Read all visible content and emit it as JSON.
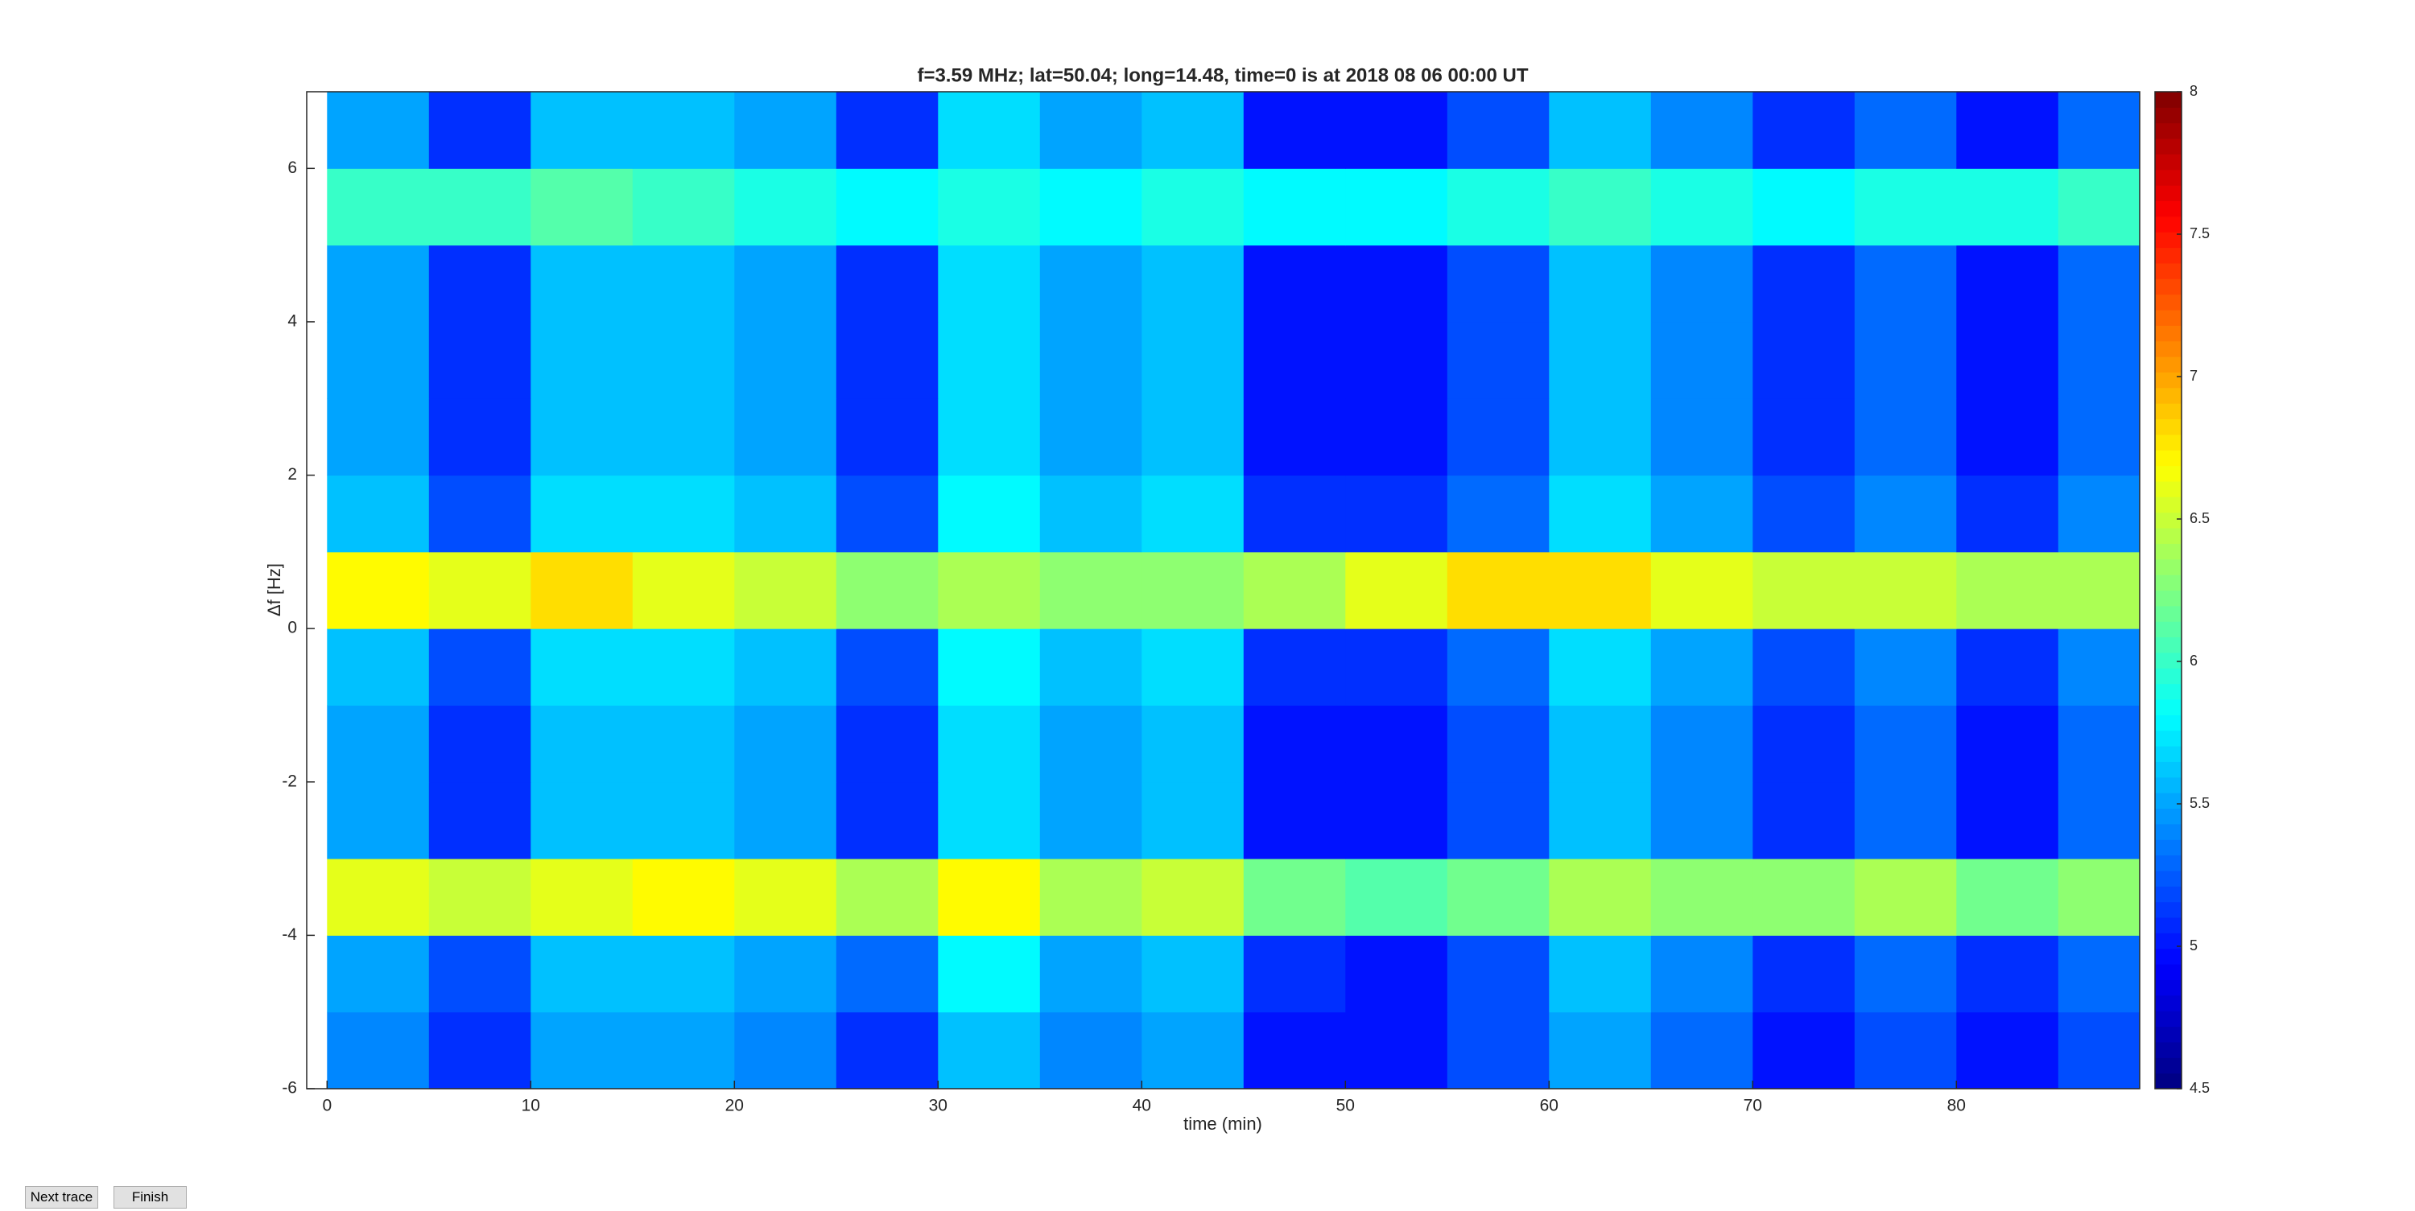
{
  "chart_data": {
    "type": "heatmap",
    "title": "f=3.59 MHz;  lat=50.04; long=14.48, time=0 is at 2018 08 06 00:00 UT",
    "xlabel": "time (min)",
    "ylabel": "Δf [Hz]",
    "x": [
      2.5,
      7.5,
      12.5,
      17.5,
      22.5,
      27.5,
      32.5,
      37.5,
      42.5,
      47.5,
      52.5,
      57.5,
      62.5,
      67.5,
      72.5,
      77.5,
      82.5,
      87.5
    ],
    "y": [
      -5.5,
      -4.5,
      -3.5,
      -2.5,
      -1.5,
      -0.5,
      0.5,
      1.5,
      2.5,
      3.5,
      4.5,
      5.5,
      6.5
    ],
    "values": [
      [
        5.4,
        5.1,
        5.5,
        5.5,
        5.4,
        5.1,
        5.6,
        5.4,
        5.5,
        5.0,
        5.0,
        5.2,
        5.5,
        5.3,
        5.0,
        5.2,
        5.0,
        5.2
      ],
      [
        5.5,
        5.2,
        5.6,
        5.6,
        5.5,
        5.3,
        5.8,
        5.5,
        5.6,
        5.1,
        5.0,
        5.2,
        5.6,
        5.4,
        5.1,
        5.3,
        5.1,
        5.3
      ],
      [
        6.6,
        6.5,
        6.6,
        6.7,
        6.6,
        6.4,
        6.7,
        6.4,
        6.5,
        6.2,
        6.1,
        6.2,
        6.4,
        6.3,
        6.3,
        6.4,
        6.2,
        6.3
      ],
      [
        5.5,
        5.1,
        5.6,
        5.6,
        5.5,
        5.1,
        5.7,
        5.5,
        5.6,
        5.0,
        5.0,
        5.2,
        5.6,
        5.4,
        5.1,
        5.3,
        5.0,
        5.3
      ],
      [
        5.5,
        5.1,
        5.6,
        5.6,
        5.5,
        5.1,
        5.7,
        5.5,
        5.6,
        5.0,
        5.0,
        5.2,
        5.6,
        5.4,
        5.1,
        5.3,
        5.0,
        5.3
      ],
      [
        5.6,
        5.2,
        5.7,
        5.7,
        5.6,
        5.2,
        5.8,
        5.6,
        5.7,
        5.1,
        5.1,
        5.3,
        5.7,
        5.5,
        5.2,
        5.4,
        5.1,
        5.4
      ],
      [
        6.7,
        6.6,
        6.8,
        6.6,
        6.5,
        6.3,
        6.4,
        6.3,
        6.3,
        6.4,
        6.6,
        6.8,
        6.8,
        6.6,
        6.5,
        6.5,
        6.4,
        6.4
      ],
      [
        5.6,
        5.2,
        5.7,
        5.7,
        5.6,
        5.2,
        5.8,
        5.6,
        5.7,
        5.1,
        5.1,
        5.3,
        5.7,
        5.5,
        5.2,
        5.4,
        5.1,
        5.4
      ],
      [
        5.5,
        5.1,
        5.6,
        5.6,
        5.5,
        5.1,
        5.7,
        5.5,
        5.6,
        5.0,
        5.0,
        5.2,
        5.6,
        5.4,
        5.1,
        5.3,
        5.0,
        5.3
      ],
      [
        5.5,
        5.1,
        5.6,
        5.6,
        5.5,
        5.1,
        5.7,
        5.5,
        5.6,
        5.0,
        5.0,
        5.2,
        5.6,
        5.4,
        5.1,
        5.3,
        5.0,
        5.3
      ],
      [
        5.5,
        5.1,
        5.6,
        5.6,
        5.5,
        5.1,
        5.7,
        5.5,
        5.6,
        5.0,
        5.0,
        5.2,
        5.6,
        5.4,
        5.1,
        5.3,
        5.0,
        5.3
      ],
      [
        6.0,
        6.0,
        6.1,
        6.0,
        5.9,
        5.8,
        5.9,
        5.8,
        5.9,
        5.8,
        5.8,
        5.9,
        6.0,
        5.9,
        5.8,
        5.9,
        5.9,
        6.0
      ],
      [
        5.5,
        5.1,
        5.6,
        5.6,
        5.5,
        5.1,
        5.7,
        5.5,
        5.6,
        5.0,
        5.0,
        5.2,
        5.6,
        5.4,
        5.1,
        5.3,
        5.0,
        5.3
      ]
    ],
    "xlim": [
      -1,
      89
    ],
    "xticks": [
      0,
      10,
      20,
      30,
      40,
      50,
      60,
      70,
      80
    ],
    "ylim": [
      -6,
      7
    ],
    "yticks": [
      -6,
      -4,
      -2,
      0,
      2,
      4,
      6
    ],
    "clim": [
      4.5,
      8
    ],
    "cticks": [
      4.5,
      5,
      5.5,
      6,
      6.5,
      7,
      7.5,
      8
    ],
    "colormap": "jet"
  },
  "buttons": [
    "Next trace",
    "Finish"
  ]
}
